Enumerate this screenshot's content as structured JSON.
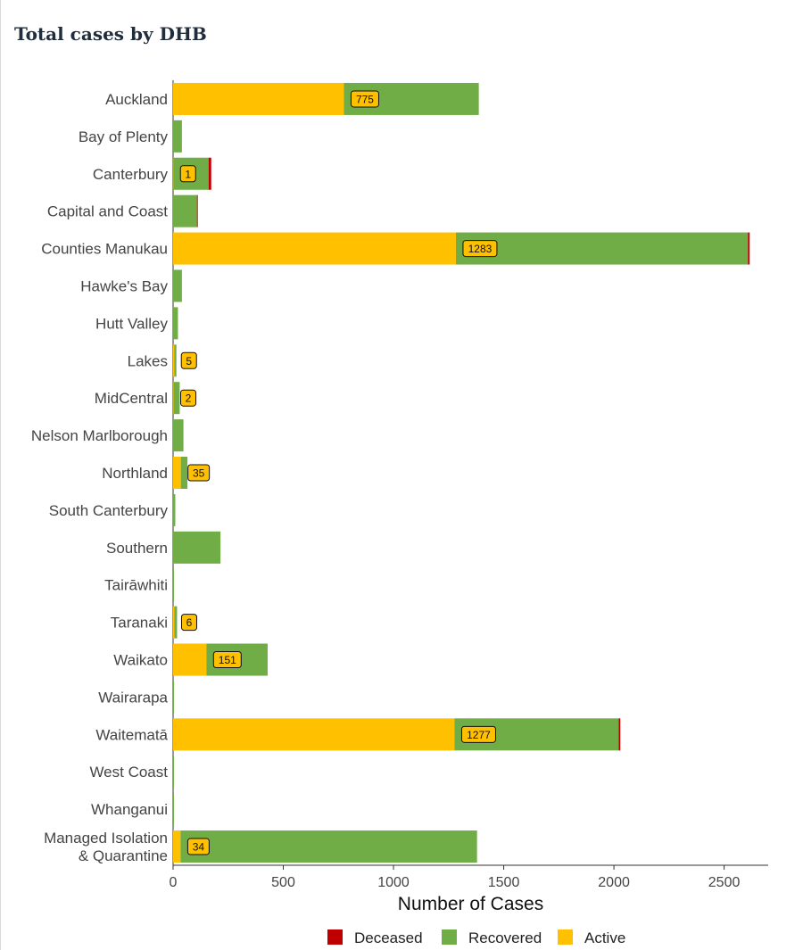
{
  "title": "Total cases by DHB",
  "chart_data": {
    "type": "bar",
    "orientation": "horizontal",
    "stacked": true,
    "title": "Total cases by DHB",
    "xlabel": "Number of Cases",
    "ylabel": "",
    "xlim": [
      0,
      2700
    ],
    "xticks": [
      0,
      500,
      1000,
      1500,
      2000,
      2500
    ],
    "categories": [
      "Auckland",
      "Bay of Plenty",
      "Canterbury",
      "Capital and Coast",
      "Counties Manukau",
      "Hawke's Bay",
      "Hutt Valley",
      "Lakes",
      "MidCentral",
      "Nelson Marlborough",
      "Northland",
      "South Canterbury",
      "Southern",
      "Tairāwhiti",
      "Taranaki",
      "Waikato",
      "Wairarapa",
      "Waitematā",
      "West Coast",
      "Whanganui",
      "Managed Isolation & Quarantine"
    ],
    "series": [
      {
        "name": "Active",
        "color": "#FFC000",
        "values": [
          775,
          0,
          1,
          0,
          1283,
          0,
          0,
          5,
          2,
          0,
          35,
          0,
          0,
          0,
          6,
          151,
          0,
          1277,
          0,
          0,
          34
        ]
      },
      {
        "name": "Recovered",
        "color": "#70AD47",
        "values": [
          612,
          40,
          160,
          108,
          1325,
          40,
          22,
          10,
          28,
          47,
          30,
          10,
          215,
          1,
          12,
          278,
          3,
          745,
          3,
          2,
          1345
        ]
      },
      {
        "name": "Deceased",
        "color": "#C00000",
        "values": [
          0,
          0,
          12,
          2,
          8,
          0,
          0,
          0,
          0,
          0,
          0,
          0,
          0,
          0,
          0,
          0,
          0,
          7,
          0,
          0,
          0
        ]
      }
    ],
    "data_labels": {
      "Auckland": "775",
      "Canterbury": "1",
      "Counties Manukau": "1283",
      "Lakes": "5",
      "MidCentral": "2",
      "Northland": "35",
      "Taranaki": "6",
      "Waikato": "151",
      "Waitematā": "1277",
      "Managed Isolation & Quarantine": "34"
    },
    "legend": {
      "position": "bottom",
      "items": [
        {
          "name": "Deceased",
          "color": "#C00000"
        },
        {
          "name": "Recovered",
          "color": "#70AD47"
        },
        {
          "name": "Active",
          "color": "#FFC000"
        }
      ]
    }
  }
}
